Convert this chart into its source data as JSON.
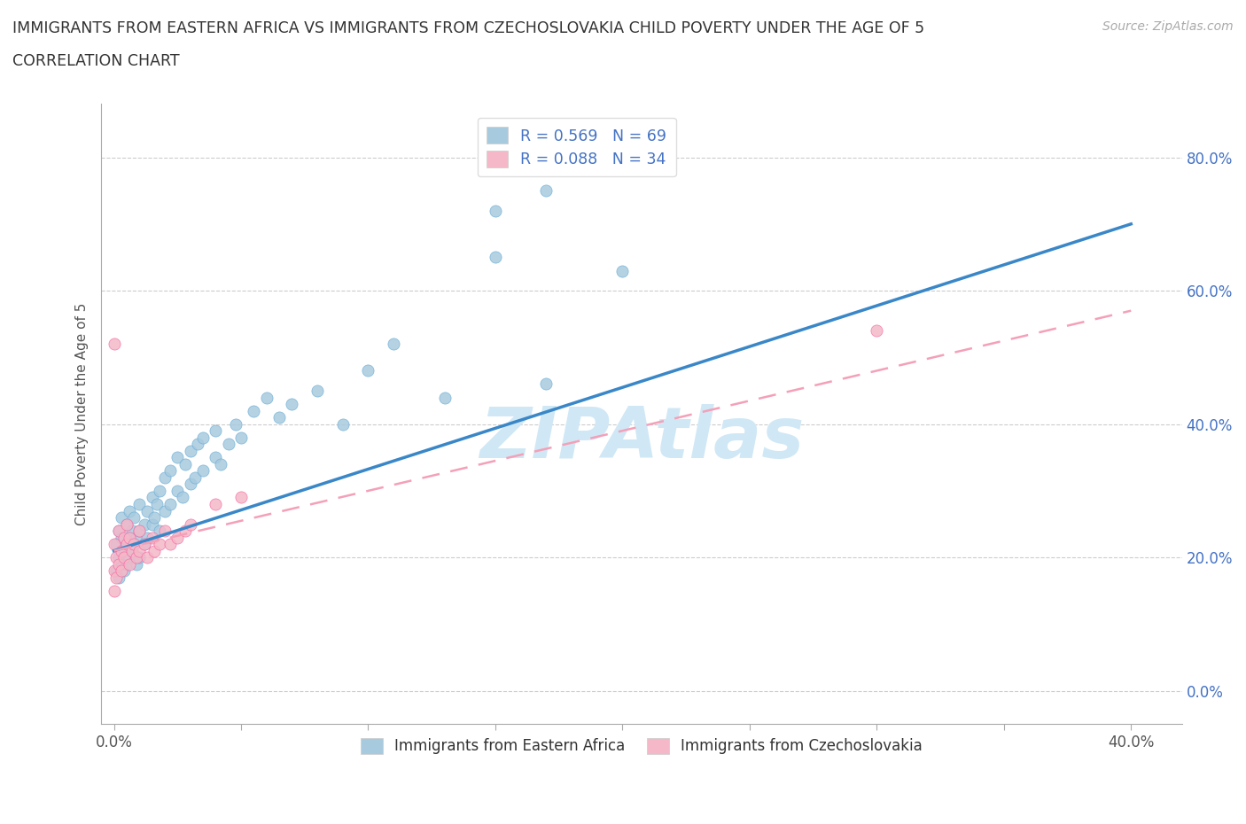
{
  "title_line1": "IMMIGRANTS FROM EASTERN AFRICA VS IMMIGRANTS FROM CZECHOSLOVAKIA CHILD POVERTY UNDER THE AGE OF 5",
  "title_line2": "CORRELATION CHART",
  "source_text": "Source: ZipAtlas.com",
  "ylabel": "Child Poverty Under the Age of 5",
  "x_ticks": [
    0.0,
    0.05,
    0.1,
    0.15,
    0.2,
    0.25,
    0.3,
    0.35,
    0.4
  ],
  "x_tick_labels_show": [
    "0.0%",
    "",
    "",
    "",
    "",
    "",
    "",
    "",
    "40.0%"
  ],
  "y_ticks": [
    0.0,
    0.2,
    0.4,
    0.6,
    0.8
  ],
  "y_tick_labels": [
    "0.0%",
    "20.0%",
    "40.0%",
    "60.0%",
    "80.0%"
  ],
  "xlim": [
    -0.005,
    0.42
  ],
  "ylim": [
    -0.05,
    0.88
  ],
  "blue_color": "#a8cadf",
  "pink_color": "#f4b8c8",
  "blue_edge_color": "#6baed6",
  "pink_edge_color": "#f768a1",
  "blue_R": 0.569,
  "blue_N": 69,
  "pink_R": 0.088,
  "pink_N": 34,
  "trend_blue_color": "#3a87c8",
  "trend_pink_color": "#f4a0b8",
  "watermark": "ZIPAtlas",
  "watermark_color": "#d0e8f5",
  "legend_label_blue": "Immigrants from Eastern Africa",
  "legend_label_pink": "Immigrants from Czechoslovakia",
  "blue_trend_x0": 0.0,
  "blue_trend_y0": 0.21,
  "blue_trend_x1": 0.4,
  "blue_trend_y1": 0.7,
  "pink_trend_x0": 0.0,
  "pink_trend_y0": 0.21,
  "pink_trend_x1": 0.4,
  "pink_trend_y1": 0.57,
  "blue_scatter_x": [
    0.001,
    0.001,
    0.002,
    0.002,
    0.002,
    0.003,
    0.003,
    0.003,
    0.004,
    0.004,
    0.005,
    0.005,
    0.005,
    0.006,
    0.006,
    0.006,
    0.007,
    0.007,
    0.008,
    0.008,
    0.009,
    0.009,
    0.01,
    0.01,
    0.01,
    0.012,
    0.012,
    0.013,
    0.013,
    0.015,
    0.015,
    0.016,
    0.017,
    0.018,
    0.018,
    0.02,
    0.02,
    0.022,
    0.022,
    0.025,
    0.025,
    0.027,
    0.028,
    0.03,
    0.03,
    0.032,
    0.033,
    0.035,
    0.035,
    0.04,
    0.04,
    0.042,
    0.045,
    0.048,
    0.05,
    0.055,
    0.06,
    0.065,
    0.07,
    0.08,
    0.09,
    0.1,
    0.11,
    0.13,
    0.15,
    0.17,
    0.2,
    0.15,
    0.17
  ],
  "blue_scatter_y": [
    0.22,
    0.18,
    0.24,
    0.2,
    0.17,
    0.23,
    0.19,
    0.26,
    0.21,
    0.18,
    0.25,
    0.22,
    0.19,
    0.27,
    0.23,
    0.2,
    0.24,
    0.21,
    0.26,
    0.22,
    0.23,
    0.19,
    0.28,
    0.24,
    0.2,
    0.25,
    0.22,
    0.27,
    0.23,
    0.29,
    0.25,
    0.26,
    0.28,
    0.24,
    0.3,
    0.27,
    0.32,
    0.28,
    0.33,
    0.3,
    0.35,
    0.29,
    0.34,
    0.31,
    0.36,
    0.32,
    0.37,
    0.33,
    0.38,
    0.35,
    0.39,
    0.34,
    0.37,
    0.4,
    0.38,
    0.42,
    0.44,
    0.41,
    0.43,
    0.45,
    0.4,
    0.48,
    0.52,
    0.44,
    0.65,
    0.46,
    0.63,
    0.72,
    0.75
  ],
  "pink_scatter_x": [
    0.0,
    0.0,
    0.0,
    0.001,
    0.001,
    0.002,
    0.002,
    0.003,
    0.003,
    0.004,
    0.004,
    0.005,
    0.005,
    0.006,
    0.006,
    0.007,
    0.008,
    0.009,
    0.01,
    0.01,
    0.012,
    0.013,
    0.015,
    0.016,
    0.018,
    0.02,
    0.022,
    0.025,
    0.028,
    0.03,
    0.04,
    0.05,
    0.3,
    0.0
  ],
  "pink_scatter_y": [
    0.22,
    0.18,
    0.15,
    0.2,
    0.17,
    0.24,
    0.19,
    0.21,
    0.18,
    0.23,
    0.2,
    0.25,
    0.22,
    0.19,
    0.23,
    0.21,
    0.22,
    0.2,
    0.24,
    0.21,
    0.22,
    0.2,
    0.23,
    0.21,
    0.22,
    0.24,
    0.22,
    0.23,
    0.24,
    0.25,
    0.28,
    0.29,
    0.54,
    0.52
  ]
}
